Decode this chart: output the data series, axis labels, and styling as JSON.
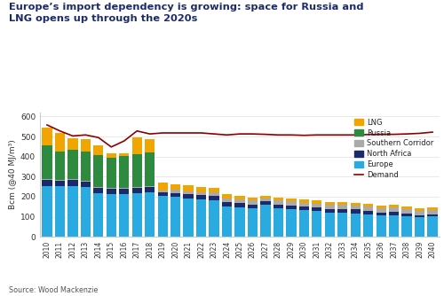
{
  "title_line1": "Europe’s import dependency is growing: space for Russia and",
  "title_line2": "LNG opens up through the 2020s",
  "source": "Source: Wood Mackenzie",
  "ylabel": "Bcm (@40 MJ/m³)",
  "ylim": [
    0,
    620
  ],
  "yticks": [
    0,
    100,
    200,
    300,
    400,
    500,
    600
  ],
  "years": [
    2010,
    2011,
    2012,
    2013,
    2014,
    2015,
    2016,
    2017,
    2018,
    2019,
    2020,
    2021,
    2022,
    2023,
    2024,
    2025,
    2026,
    2027,
    2028,
    2029,
    2030,
    2031,
    2032,
    2033,
    2034,
    2035,
    2036,
    2037,
    2038,
    2039,
    2040
  ],
  "europe": [
    255,
    252,
    252,
    250,
    218,
    212,
    212,
    218,
    222,
    202,
    198,
    192,
    188,
    182,
    152,
    148,
    142,
    158,
    142,
    138,
    132,
    128,
    122,
    122,
    118,
    112,
    108,
    108,
    102,
    98,
    102
  ],
  "north_africa": [
    30,
    26,
    30,
    26,
    26,
    26,
    26,
    26,
    26,
    20,
    20,
    20,
    20,
    20,
    20,
    20,
    20,
    18,
    18,
    18,
    18,
    18,
    18,
    18,
    18,
    18,
    14,
    18,
    14,
    10,
    10
  ],
  "southern_corridor": [
    5,
    5,
    5,
    5,
    5,
    5,
    5,
    5,
    5,
    10,
    15,
    15,
    15,
    20,
    20,
    20,
    20,
    15,
    20,
    20,
    20,
    20,
    20,
    20,
    20,
    20,
    20,
    20,
    20,
    20,
    20
  ],
  "russia": [
    165,
    142,
    148,
    142,
    160,
    152,
    158,
    162,
    168,
    0,
    0,
    0,
    0,
    0,
    0,
    0,
    0,
    0,
    0,
    0,
    0,
    0,
    0,
    0,
    0,
    0,
    0,
    0,
    0,
    0,
    0
  ],
  "lng": [
    90,
    95,
    55,
    65,
    45,
    20,
    15,
    85,
    65,
    40,
    30,
    30,
    25,
    20,
    20,
    18,
    15,
    15,
    15,
    15,
    15,
    15,
    15,
    15,
    15,
    15,
    15,
    15,
    15,
    15,
    15
  ],
  "demand": [
    558,
    528,
    503,
    508,
    495,
    448,
    478,
    528,
    513,
    518,
    518,
    518,
    518,
    513,
    508,
    513,
    513,
    511,
    508,
    508,
    506,
    508,
    508,
    508,
    508,
    510,
    511,
    511,
    513,
    516,
    522
  ],
  "color_europe": "#29ABE2",
  "color_north_africa": "#1B2A6B",
  "color_southern_corridor": "#AAAAAA",
  "color_russia": "#2D8A3E",
  "color_lng": "#F0A500",
  "color_demand": "#8B0000",
  "color_title": "#1B2A6B",
  "background_color": "#FFFFFF"
}
